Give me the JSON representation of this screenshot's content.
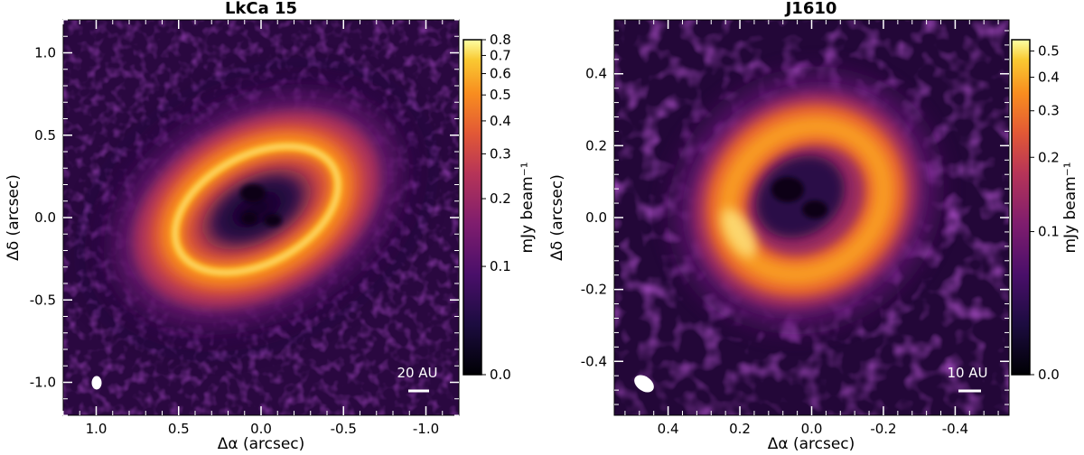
{
  "chart_data": [
    {
      "type": "heatmap",
      "title": "LkCa 15",
      "xlabel": "Δα (arcsec)",
      "ylabel": "Δδ (arcsec)",
      "xlim": [
        1.2,
        -1.2
      ],
      "ylim": [
        -1.2,
        1.2
      ],
      "x_ticks": [
        "1.0",
        "0.5",
        "0.0",
        "-0.5",
        "-1.0"
      ],
      "x_tick_values": [
        1.0,
        0.5,
        0.0,
        -0.5,
        -1.0
      ],
      "y_ticks": [
        "1.0",
        "0.5",
        "0.0",
        "-0.5",
        "-1.0"
      ],
      "y_tick_values": [
        1.0,
        0.5,
        0.0,
        -0.5,
        -1.0
      ],
      "colorbar": {
        "label": "mJy beam⁻¹",
        "ticks": [
          "0.8",
          "0.7",
          "0.6",
          "0.5",
          "0.4",
          "0.3",
          "0.2",
          "0.1",
          "0.0"
        ],
        "tick_values": [
          0.8,
          0.7,
          0.6,
          0.5,
          0.4,
          0.3,
          0.2,
          0.1,
          0.0
        ],
        "range": [
          0.0,
          0.8
        ],
        "scale": "asinh-like stretch"
      },
      "features": {
        "structure": "inclined ring with central cavity",
        "ring_semi_major_arcsec": 0.45,
        "ring_semi_minor_arcsec": 0.3,
        "position_angle_deg": 60,
        "outer_disk_extent_arcsec": 0.85,
        "peak_mJy_beam": 0.8
      },
      "scale_bar_label": "20 AU",
      "colormap": [
        "#000004",
        "#320a5a",
        "#6a1a6e",
        "#a2305f",
        "#d44a42",
        "#f4772a",
        "#fbae2a",
        "#fcffa4"
      ]
    },
    {
      "type": "heatmap",
      "title": "J1610",
      "xlabel": "Δα (arcsec)",
      "ylabel": "Δδ (arcsec)",
      "xlim": [
        0.55,
        -0.55
      ],
      "ylim": [
        -0.55,
        0.55
      ],
      "x_ticks": [
        "0.4",
        "0.2",
        "0.0",
        "-0.2",
        "-0.4"
      ],
      "x_tick_values": [
        0.4,
        0.2,
        0.0,
        -0.2,
        -0.4
      ],
      "y_ticks": [
        "0.4",
        "0.2",
        "0.0",
        "-0.2",
        "-0.4"
      ],
      "y_tick_values": [
        0.4,
        0.2,
        0.0,
        -0.2,
        -0.4
      ],
      "colorbar": {
        "label": "mJy beam⁻¹",
        "ticks": [
          "0.5",
          "0.4",
          "0.3",
          "0.2",
          "0.1",
          "0.0"
        ],
        "tick_values": [
          0.5,
          0.4,
          0.3,
          0.2,
          0.1,
          0.0
        ],
        "range": [
          0.0,
          0.55
        ],
        "scale": "asinh-like stretch"
      },
      "features": {
        "structure": "ring with central cavity",
        "ring_semi_major_arcsec": 0.2,
        "ring_semi_minor_arcsec": 0.17,
        "position_angle_deg": 30,
        "peak_mJy_beam": 0.55
      },
      "scale_bar_label": "10 AU",
      "colormap": [
        "#000004",
        "#320a5a",
        "#6a1a6e",
        "#a2305f",
        "#d44a42",
        "#f4772a",
        "#fbae2a",
        "#fcffa4"
      ]
    }
  ]
}
